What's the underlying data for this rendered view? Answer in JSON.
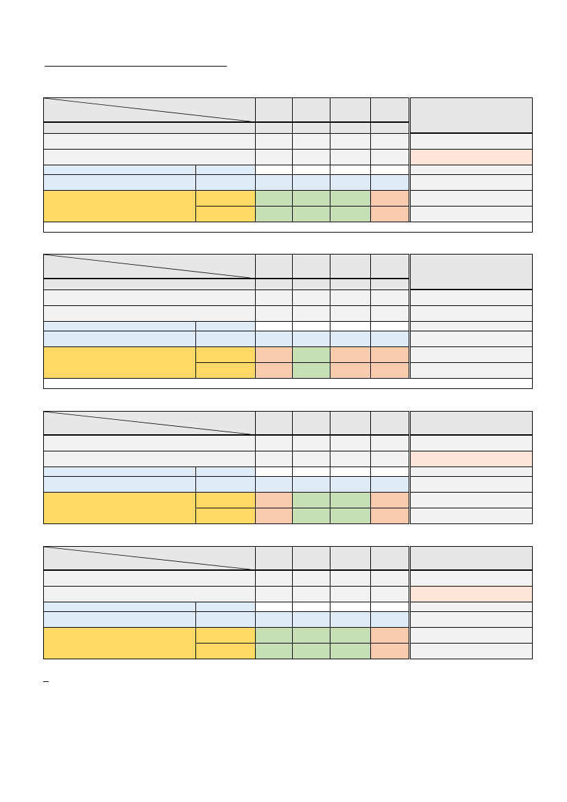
{
  "document": {
    "title": "",
    "note": ""
  },
  "colors": {
    "header_gray": "#e7e7e7",
    "row_gray": "#f2f2f2",
    "light_blue": "#ddebf7",
    "yellow": "#ffd966",
    "green": "#c6e0b4",
    "orange": "#f8cbad",
    "light_peach": "#fce4d6"
  },
  "tables": [
    {
      "id": "table-1",
      "corner_header": "",
      "column_headers": [
        "",
        "",
        "",
        ""
      ],
      "remarks_header": "",
      "evaluation_row_1": [
        "green",
        "green",
        "green",
        "orange"
      ],
      "evaluation_row_2": [
        "green",
        "green",
        "green",
        "orange"
      ],
      "remarks_highlight_row": 2
    },
    {
      "id": "table-2",
      "corner_header": "",
      "column_headers": [
        "",
        "",
        "",
        ""
      ],
      "remarks_header": "",
      "evaluation_row_1": [
        "orange",
        "green",
        "orange",
        "orange"
      ],
      "evaluation_row_2": [
        "orange",
        "green",
        "orange",
        "orange"
      ],
      "remarks_highlight_row": null
    },
    {
      "id": "table-3",
      "corner_header": "",
      "column_headers": [
        "",
        "",
        "",
        ""
      ],
      "remarks_header": "",
      "evaluation_row_1": [
        "orange",
        "green",
        "green",
        "orange"
      ],
      "evaluation_row_2": [
        "orange",
        "green",
        "green",
        "orange"
      ],
      "remarks_highlight_row": 2
    },
    {
      "id": "table-4",
      "corner_header": "",
      "column_headers": [
        "",
        "",
        "",
        ""
      ],
      "remarks_header": "",
      "evaluation_row_1": [
        "green",
        "green",
        "green",
        "orange"
      ],
      "evaluation_row_2": [
        "green",
        "green",
        "green",
        "orange"
      ],
      "remarks_highlight_row": 2
    }
  ]
}
